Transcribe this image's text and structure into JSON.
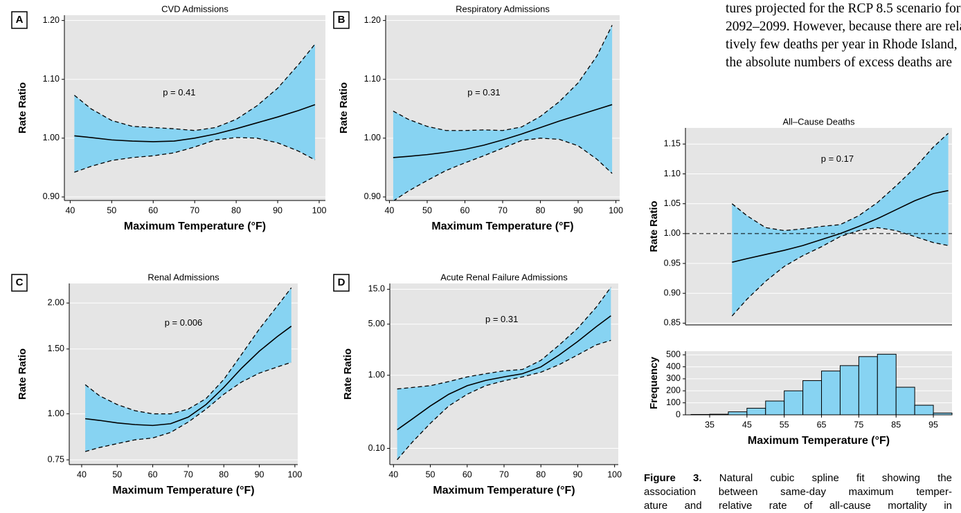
{
  "chart_data": [
    {
      "type": "line",
      "panel": "A",
      "title": "CVD Admissions",
      "annotation": "p = 0.41",
      "xlabel": "Maximum Temperature (°F)",
      "ylabel": "Rate Ratio",
      "x": [
        41,
        45,
        50,
        55,
        60,
        65,
        70,
        75,
        80,
        85,
        90,
        95,
        99
      ],
      "series": [
        {
          "color": "#000000",
          "style": "solid",
          "values": [
            1.004,
            1.001,
            0.997,
            0.995,
            0.994,
            0.995,
            1.0,
            1.007,
            1.016,
            1.026,
            1.036,
            1.047,
            1.057
          ]
        },
        {
          "color": "#000000",
          "style": "dashed",
          "values": [
            1.073,
            1.05,
            1.03,
            1.02,
            1.018,
            1.016,
            1.013,
            1.018,
            1.032,
            1.055,
            1.085,
            1.125,
            1.16
          ]
        },
        {
          "color": "#000000",
          "style": "dashed",
          "values": [
            0.942,
            0.952,
            0.962,
            0.967,
            0.97,
            0.975,
            0.985,
            0.997,
            1.001,
            1.0,
            0.992,
            0.978,
            0.963
          ]
        }
      ],
      "band_color": "#87d3f2",
      "background": "#e5e5e5",
      "grid": true,
      "log_y": false,
      "xlim": [
        38.6,
        101.5
      ],
      "xticks": [
        40,
        50,
        60,
        70,
        80,
        90,
        100
      ],
      "ylim": [
        0.894,
        1.209
      ],
      "yticks": [
        {
          "value": 0.9,
          "label": "0.90"
        },
        {
          "value": 1.0,
          "label": "1.00"
        },
        {
          "value": 1.1,
          "label": "1.10"
        },
        {
          "value": 1.2,
          "label": "1.20"
        }
      ]
    },
    {
      "type": "line",
      "panel": "B",
      "title": "Respiratory Admissions",
      "annotation": "p = 0.31",
      "xlabel": "Maximum Temperature (°F)",
      "ylabel": "Rate Ratio",
      "x": [
        41,
        45,
        50,
        55,
        60,
        65,
        70,
        75,
        80,
        85,
        90,
        95,
        99
      ],
      "series": [
        {
          "color": "#000000",
          "style": "solid",
          "values": [
            0.967,
            0.969,
            0.972,
            0.976,
            0.981,
            0.988,
            0.997,
            1.007,
            1.018,
            1.029,
            1.039,
            1.049,
            1.057
          ]
        },
        {
          "color": "#000000",
          "style": "dashed",
          "values": [
            1.046,
            1.032,
            1.02,
            1.013,
            1.013,
            1.014,
            1.013,
            1.019,
            1.037,
            1.062,
            1.094,
            1.14,
            1.192
          ]
        },
        {
          "color": "#000000",
          "style": "dashed",
          "values": [
            0.893,
            0.91,
            0.928,
            0.945,
            0.958,
            0.97,
            0.983,
            0.996,
            1.0,
            0.998,
            0.987,
            0.964,
            0.94
          ]
        }
      ],
      "band_color": "#87d3f2",
      "background": "#e5e5e5",
      "grid": true,
      "log_y": false,
      "xlim": [
        39,
        101
      ],
      "xticks": [
        40,
        50,
        60,
        70,
        80,
        90,
        100
      ],
      "ylim": [
        0.894,
        1.209
      ],
      "yticks": [
        {
          "value": 0.9,
          "label": "0.90"
        },
        {
          "value": 1.0,
          "label": "1.00"
        },
        {
          "value": 1.1,
          "label": "1.10"
        },
        {
          "value": 1.2,
          "label": "1.20"
        }
      ]
    },
    {
      "type": "line",
      "panel": "C",
      "title": "Renal Admissions",
      "annotation": "p = 0.006",
      "xlabel": "Maximum Temperature (°F)",
      "ylabel": "Rate Ratio",
      "x": [
        41,
        45,
        50,
        55,
        60,
        65,
        70,
        75,
        80,
        85,
        90,
        95,
        99
      ],
      "series": [
        {
          "color": "#000000",
          "style": "solid",
          "values": [
            0.97,
            0.96,
            0.945,
            0.935,
            0.93,
            0.94,
            0.98,
            1.06,
            1.18,
            1.33,
            1.48,
            1.62,
            1.73
          ]
        },
        {
          "color": "#000000",
          "style": "dashed",
          "values": [
            1.2,
            1.12,
            1.06,
            1.02,
            1.0,
            1.0,
            1.03,
            1.1,
            1.24,
            1.45,
            1.7,
            1.96,
            2.2
          ]
        },
        {
          "color": "#000000",
          "style": "dashed",
          "values": [
            0.79,
            0.81,
            0.83,
            0.85,
            0.86,
            0.89,
            0.95,
            1.03,
            1.13,
            1.22,
            1.29,
            1.34,
            1.38
          ]
        }
      ],
      "band_color": "#87d3f2",
      "background": "#e5e5e5",
      "grid": true,
      "log_y": true,
      "xlim": [
        36.5,
        100.8
      ],
      "xticks": [
        40,
        50,
        60,
        70,
        80,
        90,
        100
      ],
      "ylim": [
        0.728,
        2.26
      ],
      "yticks": [
        {
          "value": 0.75,
          "label": "0.75"
        },
        {
          "value": 1.0,
          "label": "1.00"
        },
        {
          "value": 1.5,
          "label": "1.50"
        },
        {
          "value": 2.0,
          "label": "2.00"
        }
      ]
    },
    {
      "type": "line",
      "panel": "D",
      "title": "Acute Renal Failure Admissions",
      "annotation": "p = 0.31",
      "xlabel": "Maximum Temperature (°F)",
      "ylabel": "Rate Ratio",
      "x": [
        41,
        45,
        50,
        55,
        60,
        65,
        70,
        75,
        80,
        85,
        90,
        95,
        99
      ],
      "series": [
        {
          "color": "#000000",
          "style": "solid",
          "values": [
            0.18,
            0.25,
            0.38,
            0.55,
            0.72,
            0.85,
            0.95,
            1.05,
            1.3,
            1.9,
            2.9,
            4.6,
            6.5
          ]
        },
        {
          "color": "#000000",
          "style": "dashed",
          "values": [
            0.65,
            0.68,
            0.72,
            0.82,
            0.95,
            1.05,
            1.15,
            1.2,
            1.6,
            2.6,
            4.4,
            8.5,
            16
          ]
        },
        {
          "color": "#000000",
          "style": "dashed",
          "values": [
            0.07,
            0.12,
            0.22,
            0.38,
            0.55,
            0.72,
            0.84,
            0.95,
            1.1,
            1.4,
            1.9,
            2.6,
            3.0
          ]
        }
      ],
      "band_color": "#87d3f2",
      "background": "#e5e5e5",
      "grid": true,
      "log_y": true,
      "xlim": [
        39,
        101
      ],
      "xticks": [
        40,
        50,
        60,
        70,
        80,
        90,
        100
      ],
      "ylim": [
        0.06,
        18
      ],
      "yticks": [
        {
          "value": 0.1,
          "label": "0.10"
        },
        {
          "value": 1.0,
          "label": "1.00"
        },
        {
          "value": 5.0,
          "label": "5.00"
        },
        {
          "value": 15.0,
          "label": "15.0"
        }
      ]
    },
    {
      "type": "line",
      "title": "All–Cause Deaths",
      "annotation": "p = 0.17",
      "ylabel": "Rate Ratio",
      "x": [
        41,
        45,
        50,
        55,
        60,
        65,
        70,
        75,
        80,
        85,
        90,
        95,
        99
      ],
      "series": [
        {
          "color": "#000000",
          "style": "solid",
          "values": [
            0.952,
            0.958,
            0.965,
            0.972,
            0.98,
            0.99,
            1.0,
            1.012,
            1.025,
            1.04,
            1.055,
            1.067,
            1.072
          ]
        },
        {
          "color": "#000000",
          "style": "dashed",
          "values": [
            1.05,
            1.03,
            1.01,
            1.005,
            1.008,
            1.012,
            1.015,
            1.03,
            1.052,
            1.08,
            1.11,
            1.145,
            1.168
          ]
        },
        {
          "color": "#000000",
          "style": "dashed",
          "values": [
            0.862,
            0.89,
            0.92,
            0.945,
            0.963,
            0.978,
            0.995,
            1.005,
            1.01,
            1.005,
            0.995,
            0.985,
            0.98
          ]
        }
      ],
      "reference_line": 1.0,
      "band_color": "#87d3f2",
      "background": "#e5e5e5",
      "grid": true,
      "log_y": false,
      "xlim": [
        28.5,
        100
      ],
      "ylim": [
        0.847,
        1.177
      ],
      "yticks": [
        0.85,
        {
          "value": 0.9,
          "label": "0.90"
        },
        0.95,
        {
          "value": 1.0,
          "label": "1.00"
        },
        1.05,
        {
          "value": 1.1,
          "label": "1.10"
        },
        1.15
      ]
    },
    {
      "type": "histogram",
      "xlabel": "Maximum Temperature (°F)",
      "ylabel": "Frequency",
      "bins": [
        30,
        35,
        40,
        45,
        50,
        55,
        60,
        65,
        70,
        75,
        80,
        85,
        90,
        95,
        100
      ],
      "counts": [
        3,
        5,
        25,
        55,
        115,
        200,
        285,
        365,
        410,
        485,
        505,
        230,
        80,
        15
      ],
      "color": "#87d3f2",
      "background": "#e5e5e5",
      "grid": true,
      "xlim": [
        28.5,
        100
      ],
      "xticks": [
        35,
        45,
        55,
        65,
        75,
        85,
        95
      ],
      "ylim": [
        0,
        530
      ],
      "yticks": [
        0,
        100,
        200,
        300,
        400,
        500
      ]
    }
  ],
  "text": {
    "paragraph": [
      "tures projected for the RCP 8.5 scenario for",
      "2092–2099. However, because there are rela-",
      "tively few deaths per year in Rhode Island,",
      "the absolute numbers of excess deaths are"
    ],
    "caption": {
      "label": "Figure 3.",
      "lines": [
        " Natural cubic spline fit showing the",
        "association between same-day maximum temper-",
        "ature and relative rate of all-cause mortality in"
      ]
    }
  }
}
